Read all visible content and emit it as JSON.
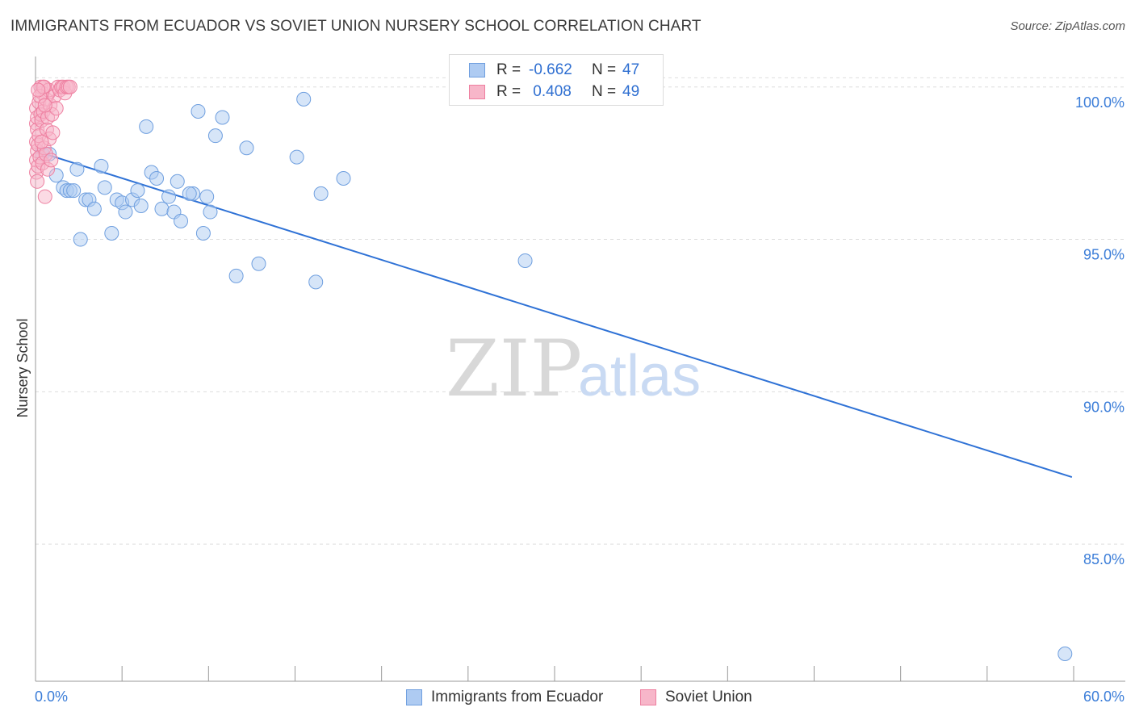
{
  "title": "IMMIGRANTS FROM ECUADOR VS SOVIET UNION NURSERY SCHOOL CORRELATION CHART",
  "source": "Source: ZipAtlas.com",
  "watermark": {
    "zip": "ZIP",
    "atlas": "atlas"
  },
  "colors": {
    "blue_fill": "#aecbf2",
    "blue_stroke": "#6f9fdf",
    "blue_line": "#2f72d6",
    "pink_fill": "#f7b6c9",
    "pink_stroke": "#ee7fa0",
    "pink_line": "#e8618c",
    "axis_text": "#3b7dd8",
    "grid": "#dddddd"
  },
  "legend": {
    "rows": [
      {
        "r_label": "R =",
        "r_value": "-0.662",
        "n_label": "N =",
        "n_value": "47"
      },
      {
        "r_label": "R =",
        "r_value": " 0.408",
        "n_label": "N =",
        "n_value": "49"
      }
    ]
  },
  "bottom_legend": {
    "series1": "Immigrants from Ecuador",
    "series2": "Soviet Union"
  },
  "chart_data": {
    "type": "scatter",
    "title": "IMMIGRANTS FROM ECUADOR VS SOVIET UNION NURSERY SCHOOL CORRELATION CHART",
    "xlabel": "",
    "ylabel": "Nursery School",
    "xlim": [
      0,
      60
    ],
    "ylim": [
      80.5,
      101
    ],
    "x_tick_labels": [
      "0.0%",
      "60.0%"
    ],
    "y_ticks": [
      {
        "value": 100,
        "label": "100.0%"
      },
      {
        "value": 95,
        "label": "95.0%"
      },
      {
        "value": 90,
        "label": "90.0%"
      },
      {
        "value": 85,
        "label": "85.0%"
      }
    ],
    "grid": true,
    "series": [
      {
        "name": "Immigrants from Ecuador",
        "color": "blue",
        "trend": {
          "x": [
            0.0,
            59.9
          ],
          "y": [
            97.9,
            87.2
          ]
        },
        "points": [
          [
            0.4,
            97.8
          ],
          [
            0.8,
            97.8
          ],
          [
            1.2,
            97.1
          ],
          [
            1.6,
            96.7
          ],
          [
            1.8,
            96.6
          ],
          [
            2.0,
            96.6
          ],
          [
            2.4,
            97.3
          ],
          [
            2.6,
            95.0
          ],
          [
            2.9,
            96.3
          ],
          [
            3.1,
            96.3
          ],
          [
            3.4,
            96.0
          ],
          [
            3.8,
            97.4
          ],
          [
            4.0,
            96.7
          ],
          [
            4.4,
            95.2
          ],
          [
            4.7,
            96.3
          ],
          [
            5.0,
            96.2
          ],
          [
            5.2,
            95.9
          ],
          [
            5.6,
            96.3
          ],
          [
            5.9,
            96.6
          ],
          [
            6.1,
            96.1
          ],
          [
            6.4,
            98.7
          ],
          [
            6.7,
            97.2
          ],
          [
            7.0,
            97.0
          ],
          [
            7.3,
            96.0
          ],
          [
            7.7,
            96.4
          ],
          [
            8.0,
            95.9
          ],
          [
            8.2,
            96.9
          ],
          [
            8.4,
            95.6
          ],
          [
            9.1,
            96.5
          ],
          [
            9.4,
            99.2
          ],
          [
            9.7,
            95.2
          ],
          [
            9.9,
            96.4
          ],
          [
            10.1,
            95.9
          ],
          [
            10.4,
            98.4
          ],
          [
            10.8,
            99.0
          ],
          [
            11.6,
            93.8
          ],
          [
            12.2,
            98.0
          ],
          [
            12.9,
            94.2
          ],
          [
            15.1,
            97.7
          ],
          [
            15.5,
            99.6
          ],
          [
            16.2,
            93.6
          ],
          [
            16.5,
            96.5
          ],
          [
            17.8,
            97.0
          ],
          [
            28.3,
            94.3
          ],
          [
            59.5,
            81.4
          ],
          [
            2.2,
            96.6
          ],
          [
            8.9,
            96.5
          ]
        ]
      },
      {
        "name": "Soviet Union",
        "color": "pink",
        "trend": {
          "x": [
            0.0,
            1.5
          ],
          "y": [
            98.7,
            100.1
          ]
        },
        "points": [
          [
            0.05,
            97.2
          ],
          [
            0.05,
            97.6
          ],
          [
            0.05,
            98.2
          ],
          [
            0.05,
            98.8
          ],
          [
            0.05,
            99.3
          ],
          [
            0.1,
            96.9
          ],
          [
            0.1,
            97.9
          ],
          [
            0.1,
            98.6
          ],
          [
            0.1,
            99.0
          ],
          [
            0.15,
            97.4
          ],
          [
            0.15,
            98.1
          ],
          [
            0.2,
            99.5
          ],
          [
            0.2,
            98.4
          ],
          [
            0.25,
            97.7
          ],
          [
            0.3,
            99.1
          ],
          [
            0.3,
            100.0
          ],
          [
            0.35,
            98.9
          ],
          [
            0.4,
            99.8
          ],
          [
            0.4,
            97.5
          ],
          [
            0.45,
            99.2
          ],
          [
            0.5,
            100.0
          ],
          [
            0.5,
            98.0
          ],
          [
            0.55,
            96.4
          ],
          [
            0.6,
            99.6
          ],
          [
            0.6,
            97.8
          ],
          [
            0.65,
            98.6
          ],
          [
            0.7,
            99.0
          ],
          [
            0.7,
            97.3
          ],
          [
            0.75,
            99.9
          ],
          [
            0.8,
            98.3
          ],
          [
            0.85,
            99.4
          ],
          [
            0.9,
            97.6
          ],
          [
            0.95,
            99.1
          ],
          [
            1.0,
            98.5
          ],
          [
            1.1,
            99.7
          ],
          [
            1.2,
            99.3
          ],
          [
            1.3,
            100.0
          ],
          [
            1.4,
            99.9
          ],
          [
            1.5,
            100.0
          ],
          [
            1.6,
            100.0
          ],
          [
            1.7,
            99.8
          ],
          [
            1.8,
            100.0
          ],
          [
            1.9,
            100.0
          ],
          [
            2.0,
            100.0
          ],
          [
            0.25,
            99.7
          ],
          [
            0.35,
            98.2
          ],
          [
            0.45,
            100.0
          ],
          [
            0.55,
            99.4
          ],
          [
            0.15,
            99.9
          ]
        ]
      }
    ]
  }
}
